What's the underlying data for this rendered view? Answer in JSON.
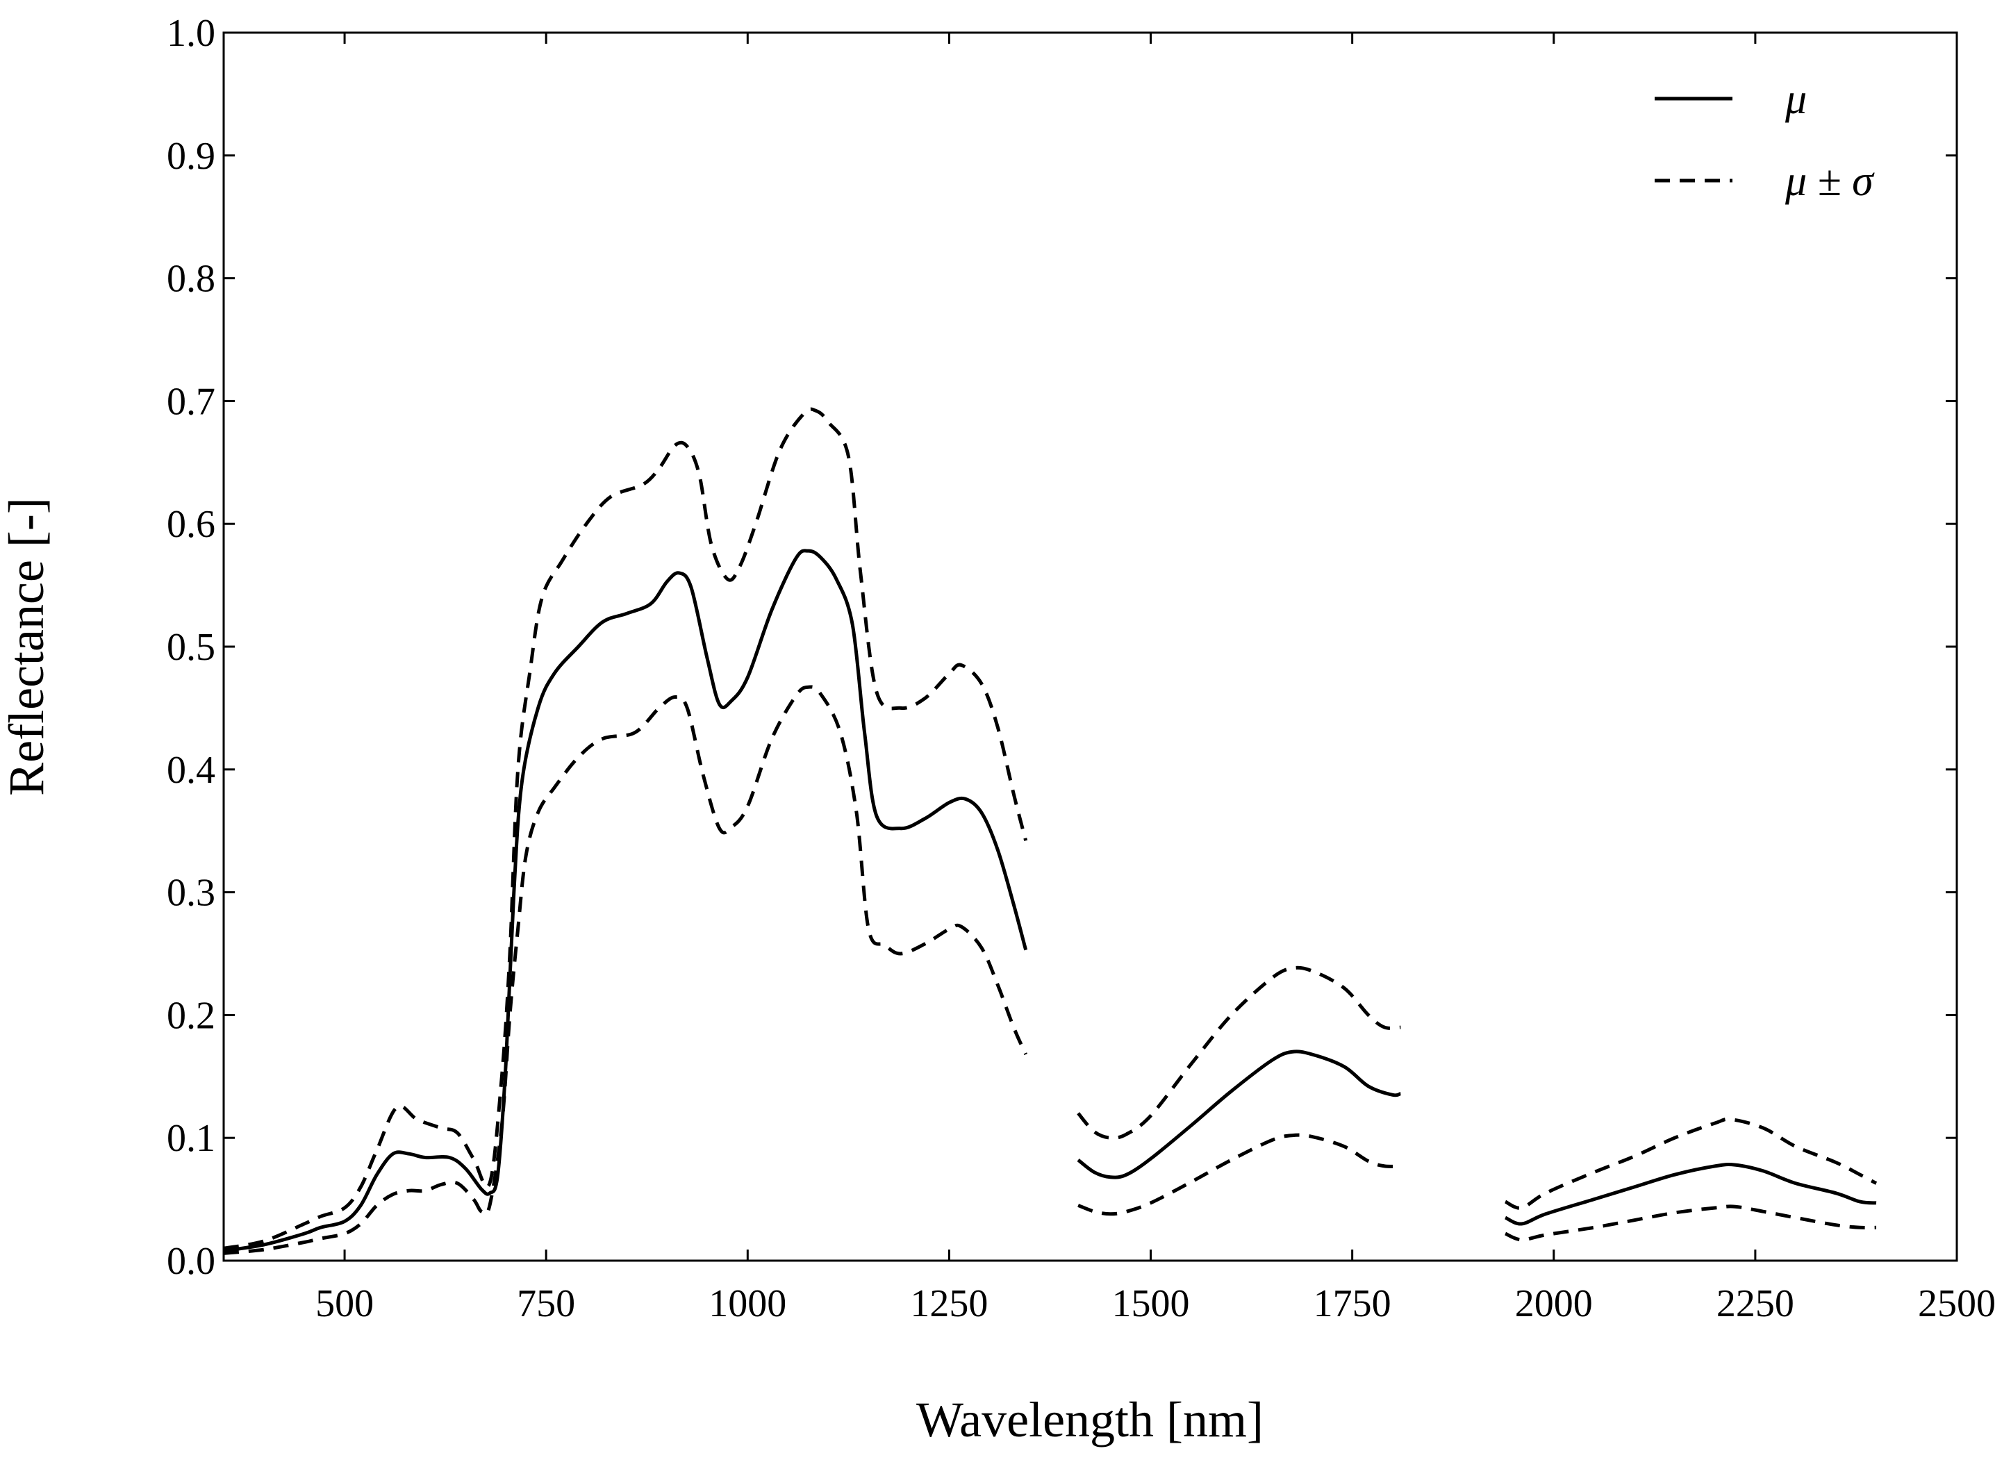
{
  "chart_data": {
    "type": "line",
    "title": "",
    "xlabel": "Wavelength [nm]",
    "ylabel": "Reflectance [-]",
    "xlim": [
      350,
      2500
    ],
    "ylim": [
      0.0,
      1.0
    ],
    "xticks": [
      500,
      750,
      1000,
      1250,
      1500,
      1750,
      2000,
      2250,
      2500
    ],
    "xtick_labels": [
      "500",
      "750",
      "1000",
      "1250",
      "1500",
      "1750",
      "2000",
      "2250",
      "2500"
    ],
    "yticks": [
      0.0,
      0.1,
      0.2,
      0.3,
      0.4,
      0.5,
      0.6,
      0.7,
      0.8,
      0.9,
      1.0
    ],
    "ytick_labels": [
      "0.0",
      "0.1",
      "0.2",
      "0.3",
      "0.4",
      "0.5",
      "0.6",
      "0.7",
      "0.8",
      "0.9",
      "1.0"
    ],
    "grid": false,
    "legend_position": "top-right",
    "legend": [
      {
        "label": "μ",
        "style": "solid"
      },
      {
        "label": "μ ± σ",
        "style": "dashed"
      }
    ],
    "series": [
      {
        "name": "μ",
        "style": "solid",
        "segments": [
          [
            [
              350,
              0.008
            ],
            [
              400,
              0.013
            ],
            [
              450,
              0.022
            ],
            [
              470,
              0.027
            ],
            [
              500,
              0.032
            ],
            [
              520,
              0.045
            ],
            [
              540,
              0.07
            ],
            [
              560,
              0.087
            ],
            [
              580,
              0.087
            ],
            [
              600,
              0.084
            ],
            [
              630,
              0.084
            ],
            [
              650,
              0.075
            ],
            [
              670,
              0.058
            ],
            [
              680,
              0.055
            ],
            [
              690,
              0.07
            ],
            [
              700,
              0.16
            ],
            [
              710,
              0.3
            ],
            [
              720,
              0.39
            ],
            [
              740,
              0.45
            ],
            [
              760,
              0.478
            ],
            [
              790,
              0.5
            ],
            [
              820,
              0.52
            ],
            [
              850,
              0.527
            ],
            [
              880,
              0.535
            ],
            [
              900,
              0.553
            ],
            [
              915,
              0.56
            ],
            [
              930,
              0.548
            ],
            [
              950,
              0.49
            ],
            [
              965,
              0.453
            ],
            [
              980,
              0.456
            ],
            [
              1000,
              0.475
            ],
            [
              1030,
              0.53
            ],
            [
              1060,
              0.572
            ],
            [
              1075,
              0.578
            ],
            [
              1090,
              0.573
            ],
            [
              1110,
              0.555
            ],
            [
              1130,
              0.518
            ],
            [
              1145,
              0.43
            ],
            [
              1160,
              0.362
            ],
            [
              1190,
              0.352
            ],
            [
              1220,
              0.36
            ],
            [
              1250,
              0.373
            ],
            [
              1270,
              0.376
            ],
            [
              1290,
              0.365
            ],
            [
              1310,
              0.335
            ],
            [
              1330,
              0.29
            ],
            [
              1345,
              0.253
            ]
          ],
          [
            [
              1410,
              0.082
            ],
            [
              1430,
              0.072
            ],
            [
              1450,
              0.068
            ],
            [
              1470,
              0.07
            ],
            [
              1500,
              0.083
            ],
            [
              1550,
              0.11
            ],
            [
              1600,
              0.138
            ],
            [
              1650,
              0.163
            ],
            [
              1675,
              0.17
            ],
            [
              1700,
              0.168
            ],
            [
              1740,
              0.158
            ],
            [
              1770,
              0.142
            ],
            [
              1800,
              0.135
            ],
            [
              1810,
              0.136
            ]
          ],
          [
            [
              1940,
              0.035
            ],
            [
              1960,
              0.03
            ],
            [
              1990,
              0.038
            ],
            [
              2050,
              0.05
            ],
            [
              2100,
              0.06
            ],
            [
              2150,
              0.07
            ],
            [
              2200,
              0.077
            ],
            [
              2225,
              0.078
            ],
            [
              2260,
              0.073
            ],
            [
              2300,
              0.063
            ],
            [
              2350,
              0.055
            ],
            [
              2380,
              0.048
            ],
            [
              2400,
              0.047
            ]
          ]
        ]
      },
      {
        "name": "μ + σ",
        "style": "dashed",
        "segments": [
          [
            [
              350,
              0.01
            ],
            [
              400,
              0.016
            ],
            [
              450,
              0.03
            ],
            [
              470,
              0.036
            ],
            [
              500,
              0.043
            ],
            [
              520,
              0.06
            ],
            [
              540,
              0.09
            ],
            [
              565,
              0.125
            ],
            [
              590,
              0.115
            ],
            [
              620,
              0.108
            ],
            [
              640,
              0.104
            ],
            [
              660,
              0.083
            ],
            [
              680,
              0.063
            ],
            [
              695,
              0.15
            ],
            [
              705,
              0.25
            ],
            [
              715,
              0.4
            ],
            [
              730,
              0.48
            ],
            [
              745,
              0.54
            ],
            [
              770,
              0.57
            ],
            [
              800,
              0.6
            ],
            [
              830,
              0.622
            ],
            [
              870,
              0.632
            ],
            [
              890,
              0.645
            ],
            [
              910,
              0.664
            ],
            [
              925,
              0.663
            ],
            [
              940,
              0.64
            ],
            [
              955,
              0.583
            ],
            [
              975,
              0.555
            ],
            [
              990,
              0.565
            ],
            [
              1010,
              0.6
            ],
            [
              1040,
              0.66
            ],
            [
              1070,
              0.69
            ],
            [
              1085,
              0.692
            ],
            [
              1100,
              0.683
            ],
            [
              1125,
              0.655
            ],
            [
              1140,
              0.56
            ],
            [
              1160,
              0.463
            ],
            [
              1190,
              0.45
            ],
            [
              1220,
              0.458
            ],
            [
              1250,
              0.478
            ],
            [
              1265,
              0.485
            ],
            [
              1290,
              0.47
            ],
            [
              1310,
              0.435
            ],
            [
              1330,
              0.38
            ],
            [
              1345,
              0.342
            ]
          ],
          [
            [
              1410,
              0.12
            ],
            [
              1430,
              0.105
            ],
            [
              1450,
              0.1
            ],
            [
              1470,
              0.103
            ],
            [
              1500,
              0.118
            ],
            [
              1550,
              0.16
            ],
            [
              1600,
              0.2
            ],
            [
              1650,
              0.23
            ],
            [
              1675,
              0.238
            ],
            [
              1700,
              0.236
            ],
            [
              1740,
              0.222
            ],
            [
              1770,
              0.2
            ],
            [
              1790,
              0.19
            ],
            [
              1810,
              0.19
            ]
          ],
          [
            [
              1940,
              0.048
            ],
            [
              1960,
              0.043
            ],
            [
              1990,
              0.055
            ],
            [
              2050,
              0.072
            ],
            [
              2100,
              0.085
            ],
            [
              2150,
              0.1
            ],
            [
              2200,
              0.112
            ],
            [
              2220,
              0.115
            ],
            [
              2260,
              0.108
            ],
            [
              2300,
              0.093
            ],
            [
              2350,
              0.08
            ],
            [
              2380,
              0.07
            ],
            [
              2400,
              0.063
            ]
          ]
        ]
      },
      {
        "name": "μ − σ",
        "style": "dashed",
        "segments": [
          [
            [
              350,
              0.006
            ],
            [
              400,
              0.009
            ],
            [
              450,
              0.015
            ],
            [
              470,
              0.018
            ],
            [
              500,
              0.022
            ],
            [
              520,
              0.03
            ],
            [
              540,
              0.045
            ],
            [
              560,
              0.054
            ],
            [
              580,
              0.057
            ],
            [
              600,
              0.057
            ],
            [
              620,
              0.062
            ],
            [
              640,
              0.063
            ],
            [
              660,
              0.05
            ],
            [
              670,
              0.04
            ],
            [
              680,
              0.045
            ],
            [
              695,
              0.11
            ],
            [
              705,
              0.2
            ],
            [
              715,
              0.27
            ],
            [
              725,
              0.33
            ],
            [
              740,
              0.365
            ],
            [
              760,
              0.385
            ],
            [
              790,
              0.41
            ],
            [
              820,
              0.425
            ],
            [
              860,
              0.43
            ],
            [
              890,
              0.45
            ],
            [
              910,
              0.459
            ],
            [
              925,
              0.45
            ],
            [
              945,
              0.395
            ],
            [
              965,
              0.352
            ],
            [
              980,
              0.353
            ],
            [
              1000,
              0.37
            ],
            [
              1030,
              0.425
            ],
            [
              1060,
              0.46
            ],
            [
              1075,
              0.467
            ],
            [
              1090,
              0.462
            ],
            [
              1115,
              0.43
            ],
            [
              1135,
              0.365
            ],
            [
              1150,
              0.27
            ],
            [
              1170,
              0.257
            ],
            [
              1190,
              0.25
            ],
            [
              1220,
              0.258
            ],
            [
              1250,
              0.27
            ],
            [
              1265,
              0.272
            ],
            [
              1290,
              0.255
            ],
            [
              1310,
              0.225
            ],
            [
              1330,
              0.19
            ],
            [
              1345,
              0.168
            ]
          ],
          [
            [
              1410,
              0.045
            ],
            [
              1430,
              0.04
            ],
            [
              1450,
              0.038
            ],
            [
              1470,
              0.04
            ],
            [
              1500,
              0.047
            ],
            [
              1550,
              0.064
            ],
            [
              1600,
              0.082
            ],
            [
              1650,
              0.098
            ],
            [
              1675,
              0.102
            ],
            [
              1700,
              0.101
            ],
            [
              1740,
              0.093
            ],
            [
              1770,
              0.081
            ],
            [
              1790,
              0.077
            ],
            [
              1810,
              0.077
            ]
          ],
          [
            [
              1940,
              0.022
            ],
            [
              1960,
              0.017
            ],
            [
              1990,
              0.021
            ],
            [
              2050,
              0.027
            ],
            [
              2100,
              0.033
            ],
            [
              2150,
              0.039
            ],
            [
              2200,
              0.043
            ],
            [
              2225,
              0.044
            ],
            [
              2260,
              0.04
            ],
            [
              2300,
              0.035
            ],
            [
              2350,
              0.029
            ],
            [
              2380,
              0.027
            ],
            [
              2400,
              0.027
            ]
          ]
        ]
      }
    ]
  }
}
